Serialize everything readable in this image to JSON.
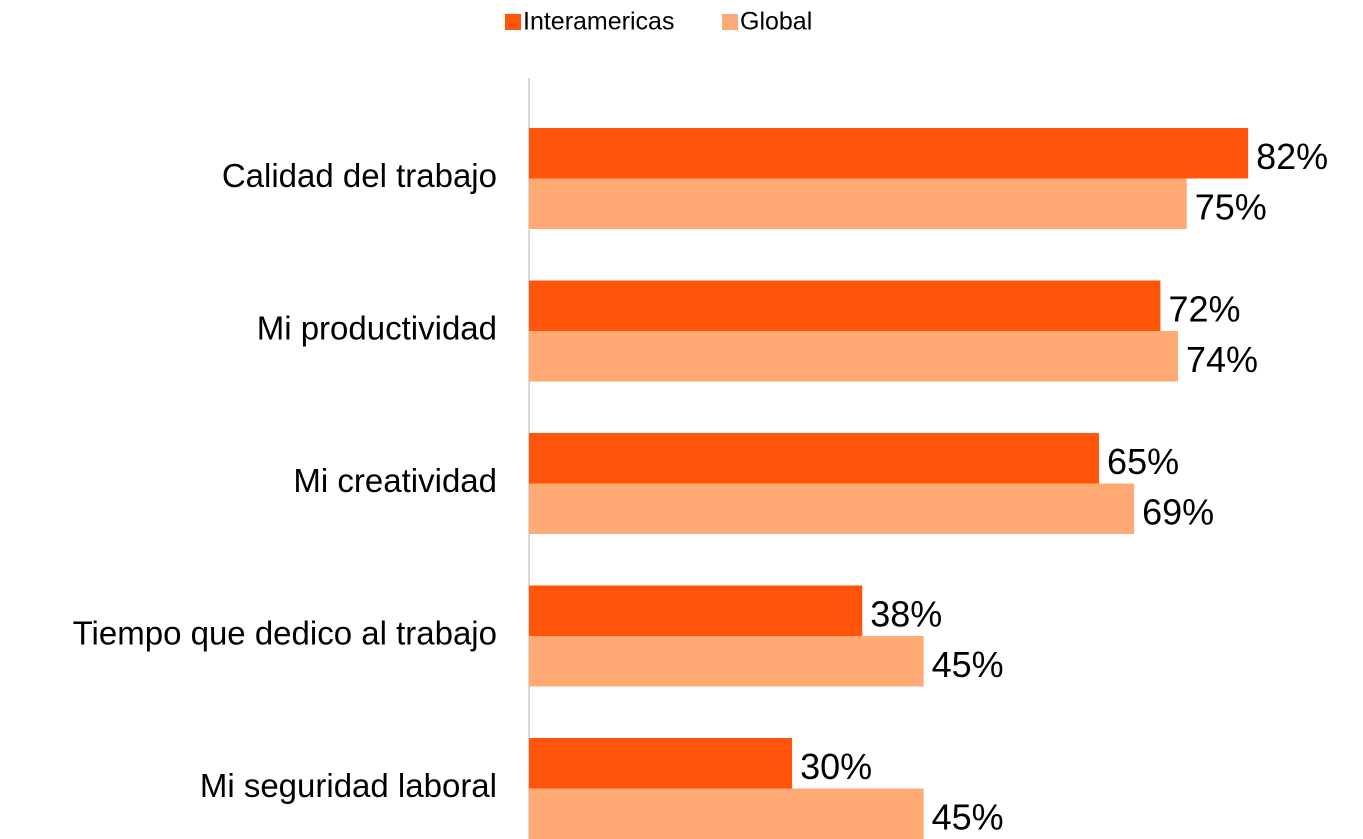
{
  "chart_data": {
    "type": "bar",
    "orientation": "horizontal",
    "categories": [
      "Calidad del trabajo",
      "Mi productividad",
      "Mi creatividad",
      "Tiempo que dedico al trabajo",
      "Mi seguridad laboral"
    ],
    "series": [
      {
        "name": "Interamericas",
        "color": "#ff540a",
        "values": [
          82,
          72,
          65,
          38,
          30
        ],
        "value_labels": [
          "82%",
          "72%",
          "65%",
          "38%",
          "30%"
        ]
      },
      {
        "name": "Global",
        "color": "#ffaa74",
        "values": [
          75,
          74,
          69,
          45,
          45
        ],
        "value_labels": [
          "75%",
          "74%",
          "69%",
          "45%",
          "45%"
        ]
      }
    ],
    "xlim": [
      0,
      100
    ],
    "legend": "top"
  }
}
